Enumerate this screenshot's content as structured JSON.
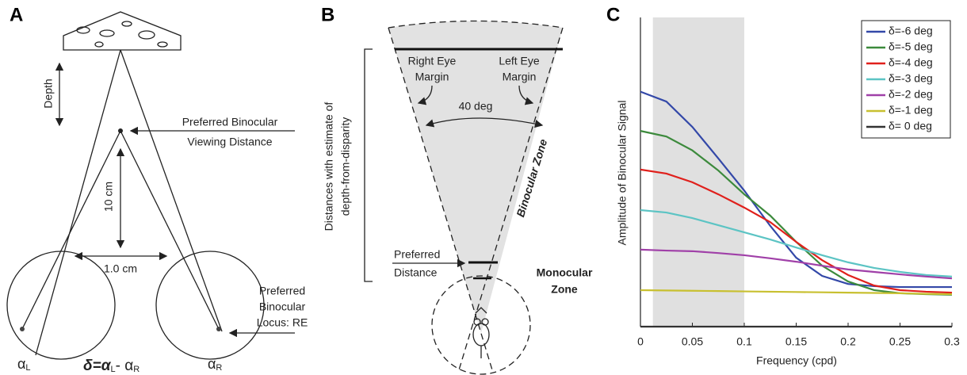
{
  "panel_a": {
    "label": "A",
    "depth": "Depth",
    "viewing_1": "Preferred Binocular",
    "viewing_2": "Viewing Distance",
    "ten_cm": "10 cm",
    "one_cm": "1.0 cm",
    "locus_1": "Preferred",
    "locus_2": "Binocular",
    "locus_3": "Locus: RE",
    "alpha": "α",
    "sub_l": "L",
    "sub_r": "R",
    "eq_lhs": "δ=α",
    "eq_mid": "- α"
  },
  "panel_b": {
    "label": "B",
    "right_eye_1": "Right Eye",
    "right_eye_2": "Margin",
    "left_eye_1": "Left Eye",
    "left_eye_2": "Margin",
    "angle": "40 deg",
    "binocular_zone": "Binocular Zone",
    "bracket_1": "Distances with estimate of",
    "bracket_2": "depth-from-disparity",
    "preferred_1": "Preferred",
    "preferred_2": "Distance",
    "monocular_1": "Monocular",
    "monocular_2": "Zone"
  },
  "chart_data": {
    "type": "line",
    "panel_label": "C",
    "x_label": "Frequency (cpd)",
    "y_label": "Amplitude of Binocular Signal",
    "x": [
      0,
      0.025,
      0.05,
      0.075,
      0.1,
      0.125,
      0.15,
      0.175,
      0.2,
      0.225,
      0.25,
      0.275,
      0.3
    ],
    "xlim": [
      0,
      0.3
    ],
    "ylim": [
      0,
      100
    ],
    "xticks": [
      0,
      0.05,
      0.1,
      0.15,
      0.2,
      0.25,
      0.3
    ],
    "shaded_span": [
      0.012,
      0.1
    ],
    "legend": "upper right",
    "series": [
      {
        "name": "δ=-6 deg",
        "color": "#3348a8",
        "values": [
          76,
          72.8,
          64.6,
          54.4,
          44,
          32.6,
          22.3,
          16.4,
          13.8,
          13.1,
          12.8,
          12.8,
          12.8
        ]
      },
      {
        "name": "δ=-5 deg",
        "color": "#3c8a3c",
        "values": [
          63.3,
          61.5,
          57,
          50.5,
          42.8,
          35.9,
          27.4,
          19.7,
          14.6,
          11.8,
          10.8,
          10.5,
          10.3
        ]
      },
      {
        "name": "δ=-4 deg",
        "color": "#e0201c",
        "values": [
          50.8,
          49.5,
          46.7,
          42.8,
          38.5,
          33.8,
          27.4,
          21.5,
          16.7,
          13.3,
          11.8,
          11.3,
          11
        ]
      },
      {
        "name": "δ=-3 deg",
        "color": "#5cc4c4",
        "values": [
          37.7,
          36.9,
          35.1,
          32.8,
          30.5,
          28.2,
          25.6,
          23.1,
          20.8,
          19,
          17.7,
          16.7,
          16.2
        ]
      },
      {
        "name": "δ=-2 deg",
        "color": "#a040a8",
        "values": [
          24.9,
          24.6,
          24.4,
          23.8,
          23.1,
          22.1,
          21,
          19.7,
          18.5,
          17.7,
          16.9,
          16.2,
          15.6
        ]
      },
      {
        "name": "δ=-1 deg",
        "color": "#c8c030",
        "values": [
          11.8,
          11.7,
          11.6,
          11.5,
          11.4,
          11.3,
          11.2,
          11.1,
          11,
          10.9,
          10.8,
          10.6,
          10.5
        ]
      },
      {
        "name": "δ= 0 deg",
        "color": "#333333",
        "values": [
          0,
          0,
          0,
          0,
          0,
          0,
          0,
          0,
          0,
          0,
          0,
          0,
          0
        ]
      }
    ]
  }
}
